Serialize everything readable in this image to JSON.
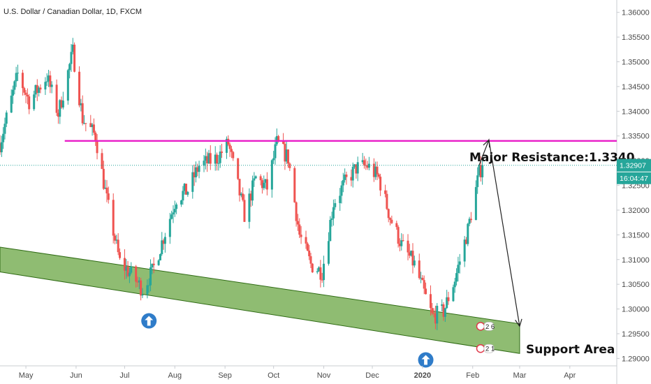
{
  "chart_data": {
    "type": "candlestick",
    "title": "U.S. Dollar / Canadian Dollar, 1D, FXCM",
    "x_range": [
      "2019-04-15",
      "2020-04-30"
    ],
    "ylim": [
      1.2885,
      1.3625
    ],
    "y_ticks": [
      "1.36000",
      "1.35500",
      "1.35000",
      "1.34500",
      "1.34000",
      "1.33500",
      "1.33000",
      "1.32500",
      "1.32000",
      "1.31500",
      "1.31000",
      "1.30500",
      "1.30000",
      "1.29500",
      "1.29000"
    ],
    "x_ticks": [
      {
        "date": "2019-05-01",
        "label": "May"
      },
      {
        "date": "2019-06-01",
        "label": "Jun"
      },
      {
        "date": "2019-07-01",
        "label": "Jul"
      },
      {
        "date": "2019-08-01",
        "label": "Aug"
      },
      {
        "date": "2019-09-01",
        "label": "Sep"
      },
      {
        "date": "2019-10-01",
        "label": "Oct"
      },
      {
        "date": "2019-11-01",
        "label": "Nov"
      },
      {
        "date": "2019-12-01",
        "label": "Dec"
      },
      {
        "date": "2020-01-01",
        "label": "2020"
      },
      {
        "date": "2020-02-01",
        "label": "Feb"
      },
      {
        "date": "2020-03-01",
        "label": "Mar"
      },
      {
        "date": "2020-04-01",
        "label": "Apr"
      }
    ],
    "anchors": [
      [
        "2019-04-15",
        1.3335
      ],
      [
        "2019-04-26",
        1.3475
      ],
      [
        "2019-05-03",
        1.342
      ],
      [
        "2019-05-14",
        1.347
      ],
      [
        "2019-05-21",
        1.3395
      ],
      [
        "2019-05-30",
        1.352
      ],
      [
        "2019-06-05",
        1.3385
      ],
      [
        "2019-06-13",
        1.335
      ],
      [
        "2019-06-20",
        1.322
      ],
      [
        "2019-06-28",
        1.3095
      ],
      [
        "2019-07-05",
        1.307
      ],
      [
        "2019-07-12",
        1.304
      ],
      [
        "2019-07-18",
        1.3075
      ],
      [
        "2019-07-26",
        1.3155
      ],
      [
        "2019-08-02",
        1.3225
      ],
      [
        "2019-08-09",
        1.324
      ],
      [
        "2019-08-16",
        1.329
      ],
      [
        "2019-08-27",
        1.3305
      ],
      [
        "2019-09-03",
        1.3335
      ],
      [
        "2019-09-13",
        1.319
      ],
      [
        "2019-09-20",
        1.3265
      ],
      [
        "2019-09-27",
        1.3245
      ],
      [
        "2019-10-03",
        1.3335
      ],
      [
        "2019-10-10",
        1.3305
      ],
      [
        "2019-10-17",
        1.315
      ],
      [
        "2019-10-24",
        1.309
      ],
      [
        "2019-10-31",
        1.3075
      ],
      [
        "2019-11-07",
        1.3215
      ],
      [
        "2019-11-14",
        1.3255
      ],
      [
        "2019-11-21",
        1.3285
      ],
      [
        "2019-11-28",
        1.329
      ],
      [
        "2019-12-05",
        1.3265
      ],
      [
        "2019-12-12",
        1.3185
      ],
      [
        "2019-12-19",
        1.313
      ],
      [
        "2019-12-27",
        1.309
      ],
      [
        "2020-01-07",
        1.2985
      ],
      [
        "2020-01-14",
        1.2995
      ],
      [
        "2020-01-21",
        1.306
      ],
      [
        "2020-01-29",
        1.316
      ],
      [
        "2020-02-05",
        1.3275
      ],
      [
        "2020-02-07",
        1.3291
      ]
    ],
    "last_price": "1.32907",
    "countdown": "16:04:47",
    "resistance": {
      "level": 1.334,
      "start": "2019-05-25",
      "end": "2020-04-30",
      "label": "Major Resistance:1.3340"
    },
    "support_area": {
      "label": "Support Area",
      "start": "2019-04-15",
      "end": "2020-03-01",
      "top_start": 1.3125,
      "top_end": 1.297,
      "bottom_start": 1.3075,
      "bottom_end": 1.291
    },
    "projection": {
      "from": [
        "2020-02-05",
        1.3291
      ],
      "peak": [
        "2020-02-11",
        1.3342
      ],
      "to": [
        "2020-03-01",
        1.2965
      ]
    },
    "markers": [
      {
        "date": "2019-07-16",
        "price": 1.2976,
        "icon": "up-arrow-circle"
      },
      {
        "date": "2020-01-03",
        "price": 1.2897,
        "icon": "up-arrow-circle"
      }
    ],
    "events": [
      {
        "date": "2020-02-05",
        "price": 1.2965,
        "label": "2 6"
      },
      {
        "date": "2020-02-05",
        "price": 1.292,
        "label": "2 1"
      }
    ],
    "colors": {
      "up": "#26a69a",
      "down": "#ef5350",
      "resistance": "#e91ec8",
      "support_fill": "#8fbc72",
      "support_edge": "#2f6b14",
      "last_price": "#26a69a",
      "arrow": "#2f7cc9"
    }
  }
}
